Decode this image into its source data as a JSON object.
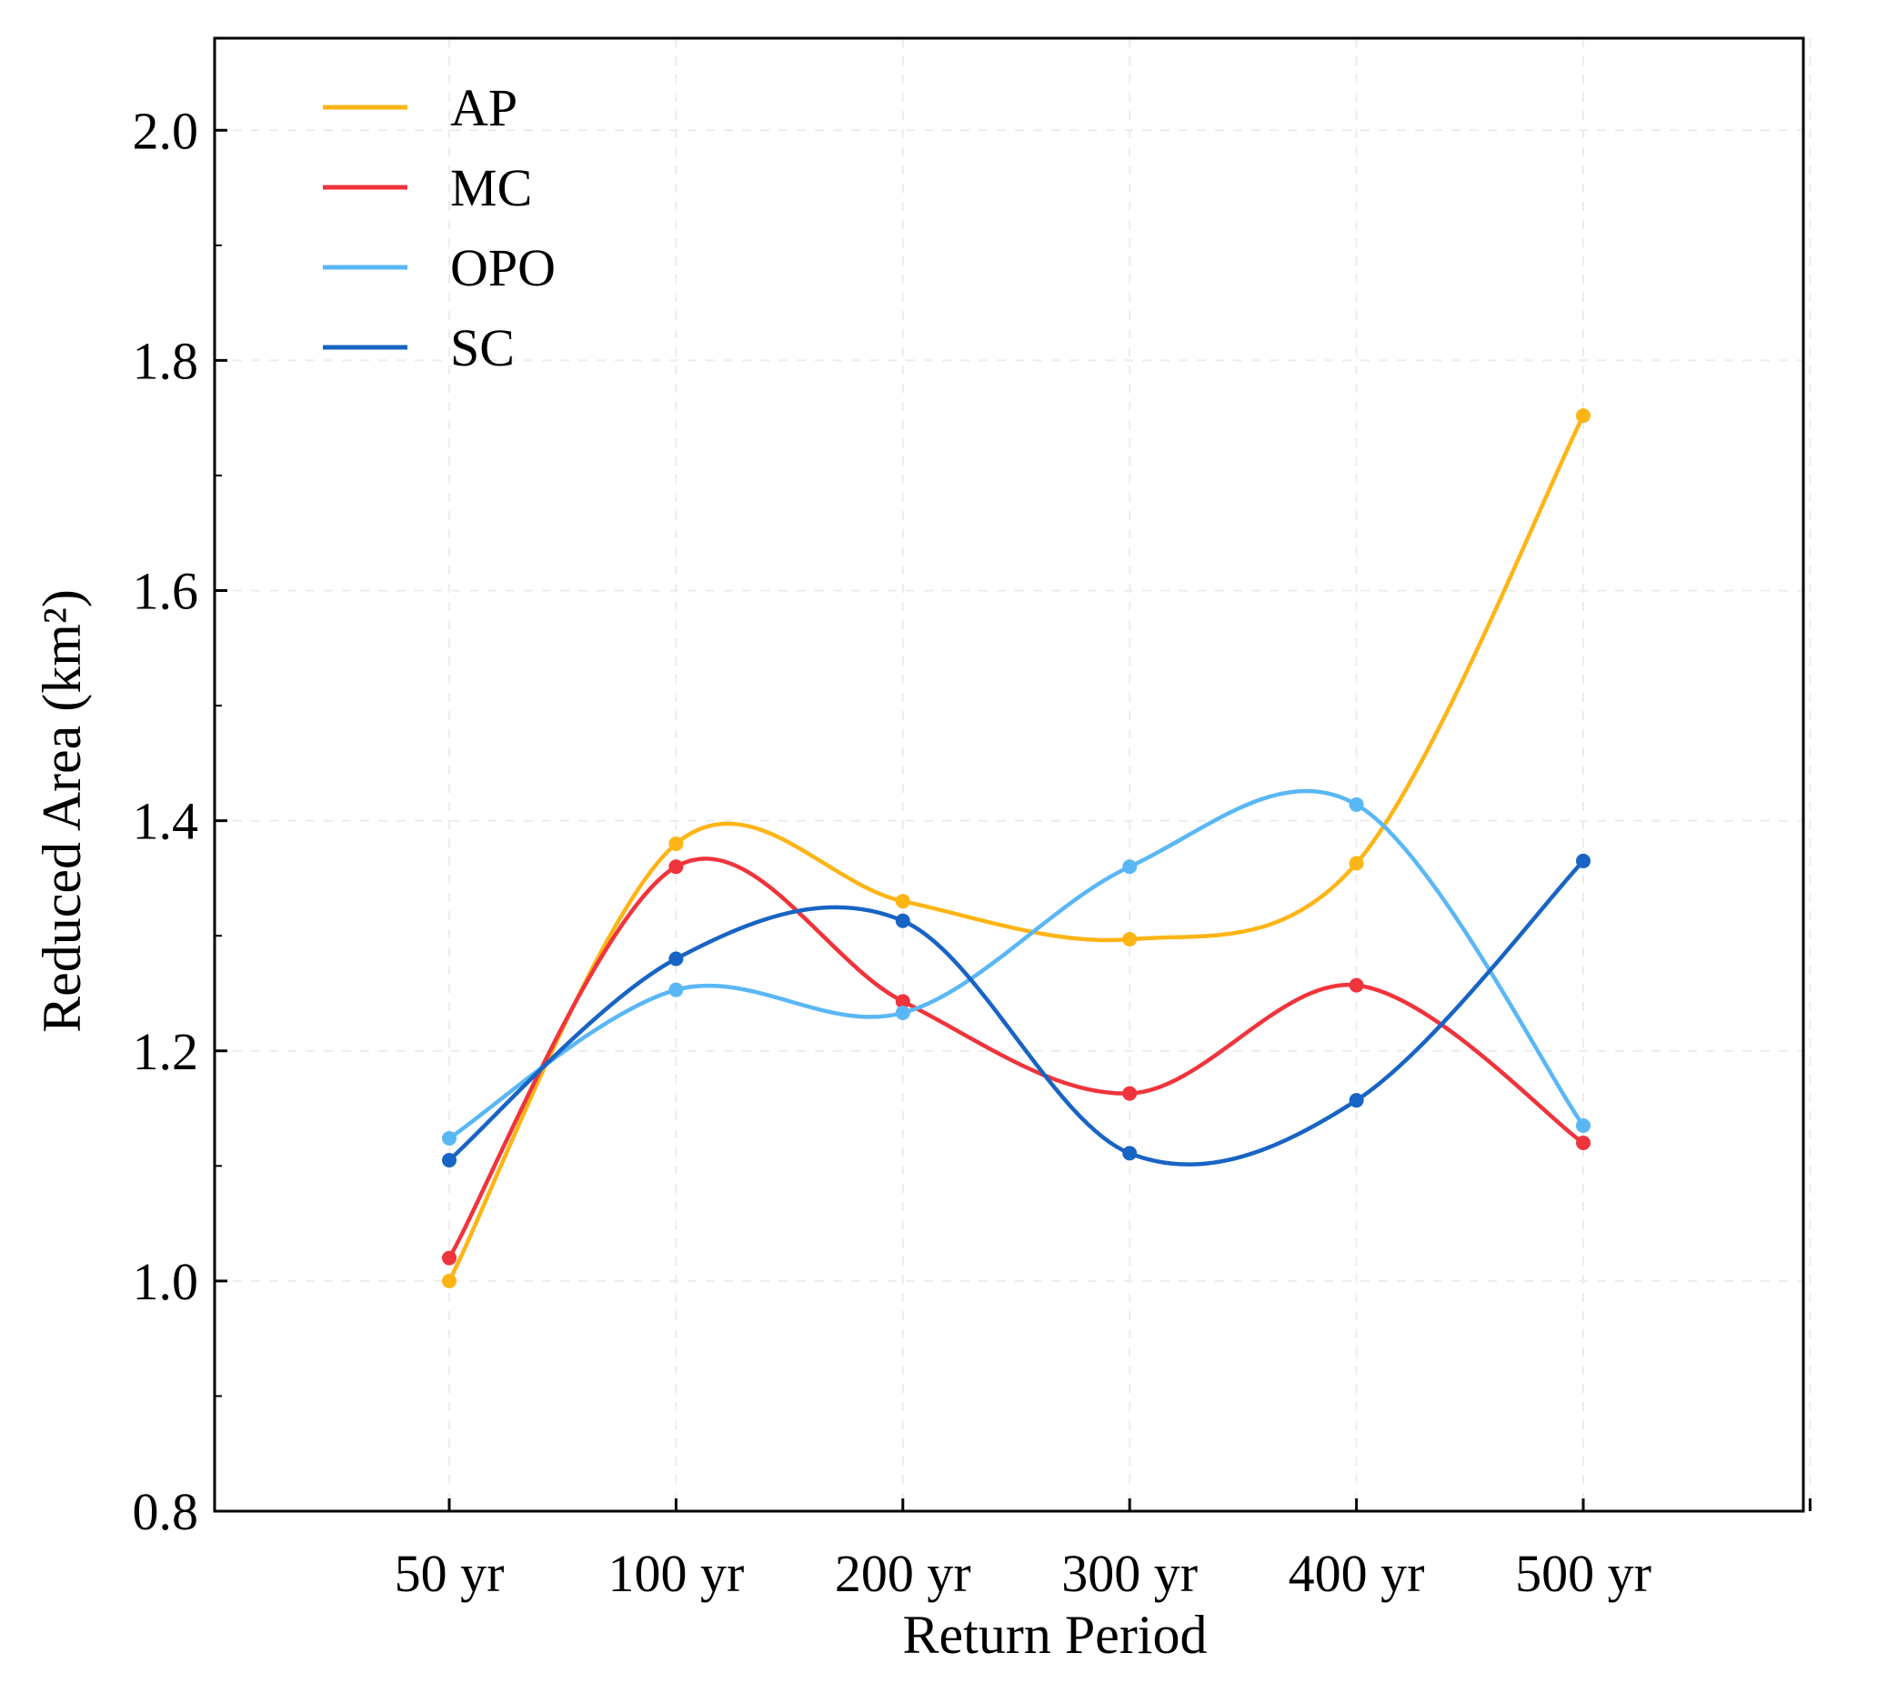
{
  "chart_data": {
    "type": "line",
    "title": "",
    "xlabel": "Return Period",
    "ylabel": "Reduced Area (km²)",
    "categories": [
      "50 yr",
      "100 yr",
      "200 yr",
      "300 yr",
      "400 yr",
      "500 yr"
    ],
    "ylim": [
      0.8,
      2.08
    ],
    "yticks": [
      0.8,
      1.0,
      1.2,
      1.4,
      1.6,
      1.8,
      2.0
    ],
    "ytick_labels": [
      "0.8",
      "1.0",
      "1.2",
      "1.4",
      "1.6",
      "1.8",
      "2.0"
    ],
    "grid": true,
    "legend_position": "top-left",
    "series": [
      {
        "name": "AP",
        "color": "#FDB515",
        "values": [
          1.0,
          1.38,
          1.33,
          1.297,
          1.363,
          1.752
        ]
      },
      {
        "name": "MC",
        "color": "#F0343C",
        "values": [
          1.02,
          1.36,
          1.243,
          1.163,
          1.257,
          1.12
        ]
      },
      {
        "name": "OPO",
        "color": "#5AB7F5",
        "values": [
          1.124,
          1.253,
          1.233,
          1.36,
          1.414,
          1.135
        ]
      },
      {
        "name": "SC",
        "color": "#1864C4",
        "values": [
          1.105,
          1.28,
          1.313,
          1.111,
          1.157,
          1.365
        ]
      }
    ]
  }
}
